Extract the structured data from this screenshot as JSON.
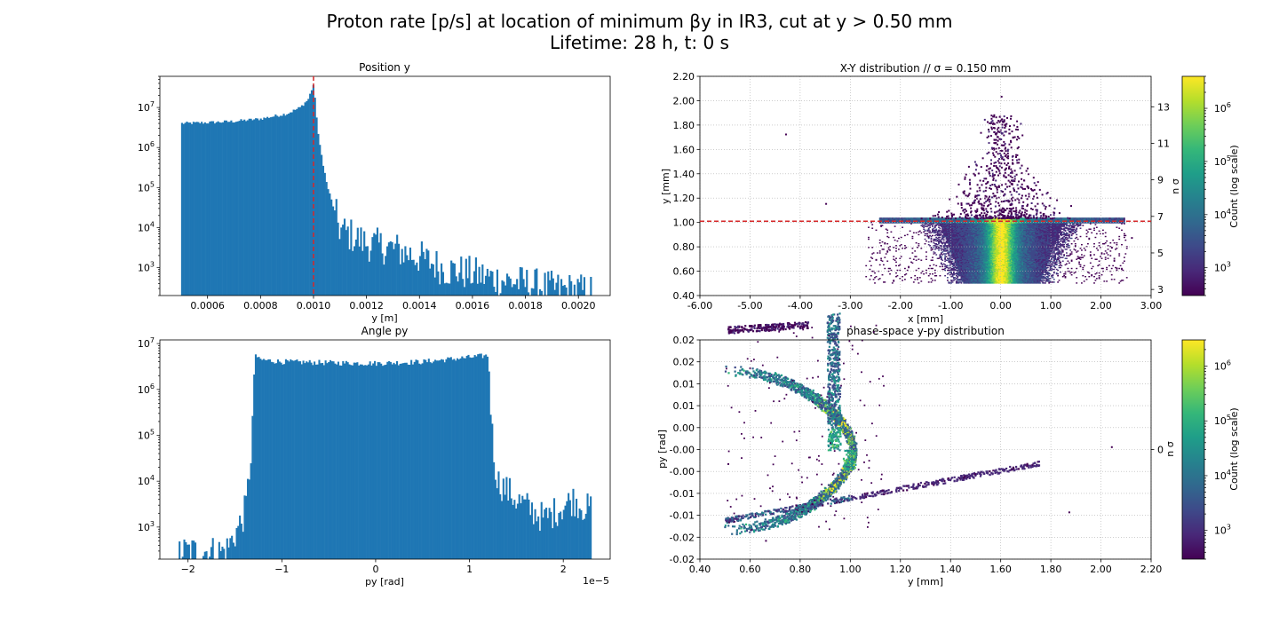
{
  "figure": {
    "title_line1": "Proton rate [p/s] at location of minimum βy in IR3, cut at y > 0.50 mm",
    "title_line2": "Lifetime: 28 h,  t: 0 s"
  },
  "colors": {
    "bar": "#1f77b4",
    "cutline": "#d62728",
    "grid": "#b0b0b0",
    "viridis": [
      "#440154",
      "#482878",
      "#3e4989",
      "#31688e",
      "#26828e",
      "#1f9e89",
      "#35b779",
      "#6ece58",
      "#b5de2b",
      "#fde725"
    ]
  },
  "chart_data": [
    {
      "id": "pos_y",
      "type": "bar",
      "title": "Position y",
      "xlabel": "y [m]",
      "ylabel": "",
      "xlim": [
        0.00042,
        0.00212
      ],
      "ylim": [
        200,
        60000000
      ],
      "yscale": "log",
      "xticks": [
        0.0006,
        0.0008,
        0.001,
        0.0012,
        0.0014,
        0.0016,
        0.0018,
        0.002
      ],
      "xtick_labels": [
        "0.0006",
        "0.0008",
        "0.0010",
        "0.0012",
        "0.0014",
        "0.0016",
        "0.0018",
        "0.0020"
      ],
      "yticks": [
        1000,
        10000,
        100000,
        1000000,
        10000000
      ],
      "ytick_labels": [
        "10^3",
        "10^4",
        "10^5",
        "10^6",
        "10^7"
      ],
      "cut_line_x": 0.001,
      "x": [
        0.0005,
        0.0006,
        0.0007,
        0.0008,
        0.0009,
        0.00095,
        0.00098,
        0.001,
        0.00102,
        0.00105,
        0.00108,
        0.0011,
        0.0012,
        0.0013,
        0.0014,
        0.0015,
        0.0016,
        0.0017,
        0.0018,
        0.0019,
        0.00205
      ],
      "values": [
        4000000,
        4200000,
        4500000,
        5200000,
        7000000,
        10000000,
        16000000,
        38000000,
        1500000,
        120000,
        25000,
        9000,
        4000,
        3000,
        1800,
        900,
        700,
        500,
        400,
        300,
        250
      ]
    },
    {
      "id": "xy",
      "type": "heatmap",
      "title": "X-Y distribution   //   σ = 0.150 mm",
      "xlabel": "x [mm]",
      "ylabel": "y [mm]",
      "y2label": "n σ",
      "xlim": [
        -6.0,
        3.0
      ],
      "ylim": [
        0.4,
        2.2
      ],
      "grid": true,
      "xticks": [
        -6.0,
        -5.0,
        -4.0,
        -3.0,
        -2.0,
        -1.0,
        0.0,
        1.0,
        2.0,
        3.0
      ],
      "xtick_labels": [
        "-6.00",
        "-5.00",
        "-4.00",
        "-3.00",
        "-2.00",
        "-1.00",
        "0.00",
        "1.00",
        "2.00",
        "3.00"
      ],
      "yticks": [
        0.4,
        0.6,
        0.8,
        1.0,
        1.2,
        1.4,
        1.6,
        1.8,
        2.0,
        2.2
      ],
      "ytick_labels": [
        "0.40",
        "0.60",
        "0.80",
        "1.00",
        "1.20",
        "1.40",
        "1.60",
        "1.80",
        "2.00",
        "2.20"
      ],
      "y2ticks": [
        3,
        5,
        7,
        9,
        11,
        13
      ],
      "y2tick_labels": [
        "3",
        "5",
        "7",
        "9",
        "11",
        "13"
      ],
      "cut_line_y": 1.01,
      "colorbar": {
        "label": "Count (log scale)",
        "range": [
          300,
          4000000
        ],
        "ticks": [
          1000,
          10000,
          100000,
          1000000
        ],
        "tick_labels": [
          "10^3",
          "10^4",
          "10^5",
          "10^6"
        ]
      }
    },
    {
      "id": "angle_py",
      "type": "bar",
      "title": "Angle py",
      "xlabel": "py [rad]",
      "ylabel": "",
      "offset_label": "1e−5",
      "xlim": [
        -2.3,
        2.5
      ],
      "ylim": [
        200,
        12000000
      ],
      "yscale": "log",
      "xticks": [
        -2,
        -1,
        0,
        1,
        2
      ],
      "xtick_labels": [
        "−2",
        "−1",
        "0",
        "1",
        "2"
      ],
      "yticks": [
        1000,
        10000,
        100000,
        1000000,
        10000000
      ],
      "ytick_labels": [
        "10^3",
        "10^4",
        "10^5",
        "10^6",
        "10^7"
      ],
      "x": [
        -2.05,
        -1.75,
        -1.6,
        -1.5,
        -1.42,
        -1.38,
        -1.33,
        -1.3,
        -1.28,
        -1.25,
        -1.0,
        -0.5,
        0.0,
        0.5,
        1.0,
        1.2,
        1.25,
        1.3,
        1.5,
        1.8,
        2.1,
        2.25
      ],
      "values": [
        300,
        300,
        300,
        700,
        1500,
        3000,
        40000,
        700000,
        6000000,
        4500000,
        4000000,
        3800000,
        3700000,
        4000000,
        5000000,
        5500000,
        50000,
        10000,
        4000,
        1500,
        4000,
        2500
      ]
    },
    {
      "id": "phase",
      "type": "heatmap",
      "title": "phase-space y-py distribution",
      "xlabel": "y [mm]",
      "ylabel": "py [rad]",
      "y2label": "n σ",
      "xlim": [
        0.4,
        2.2
      ],
      "ylim": [
        -0.02,
        0.02
      ],
      "grid": true,
      "xticks": [
        0.4,
        0.6,
        0.8,
        1.0,
        1.2,
        1.4,
        1.6,
        1.8,
        2.0,
        2.2
      ],
      "xtick_labels": [
        "0.40",
        "0.60",
        "0.80",
        "1.00",
        "1.20",
        "1.40",
        "1.60",
        "1.80",
        "2.00",
        "2.20"
      ],
      "ytick_labels": [
        "0.02",
        "0.02",
        "0.01",
        "0.01",
        "0.00",
        "-0.00",
        "-0.00",
        "-0.01",
        "-0.01",
        "-0.02",
        "-0.02"
      ],
      "y2tick_labels": [
        "0"
      ],
      "colorbar": {
        "label": "Count (log scale)",
        "range": [
          300,
          3000000
        ],
        "ticks": [
          1000,
          10000,
          100000,
          1000000
        ],
        "tick_labels": [
          "10^3",
          "10^4",
          "10^5",
          "10^6"
        ]
      }
    }
  ]
}
